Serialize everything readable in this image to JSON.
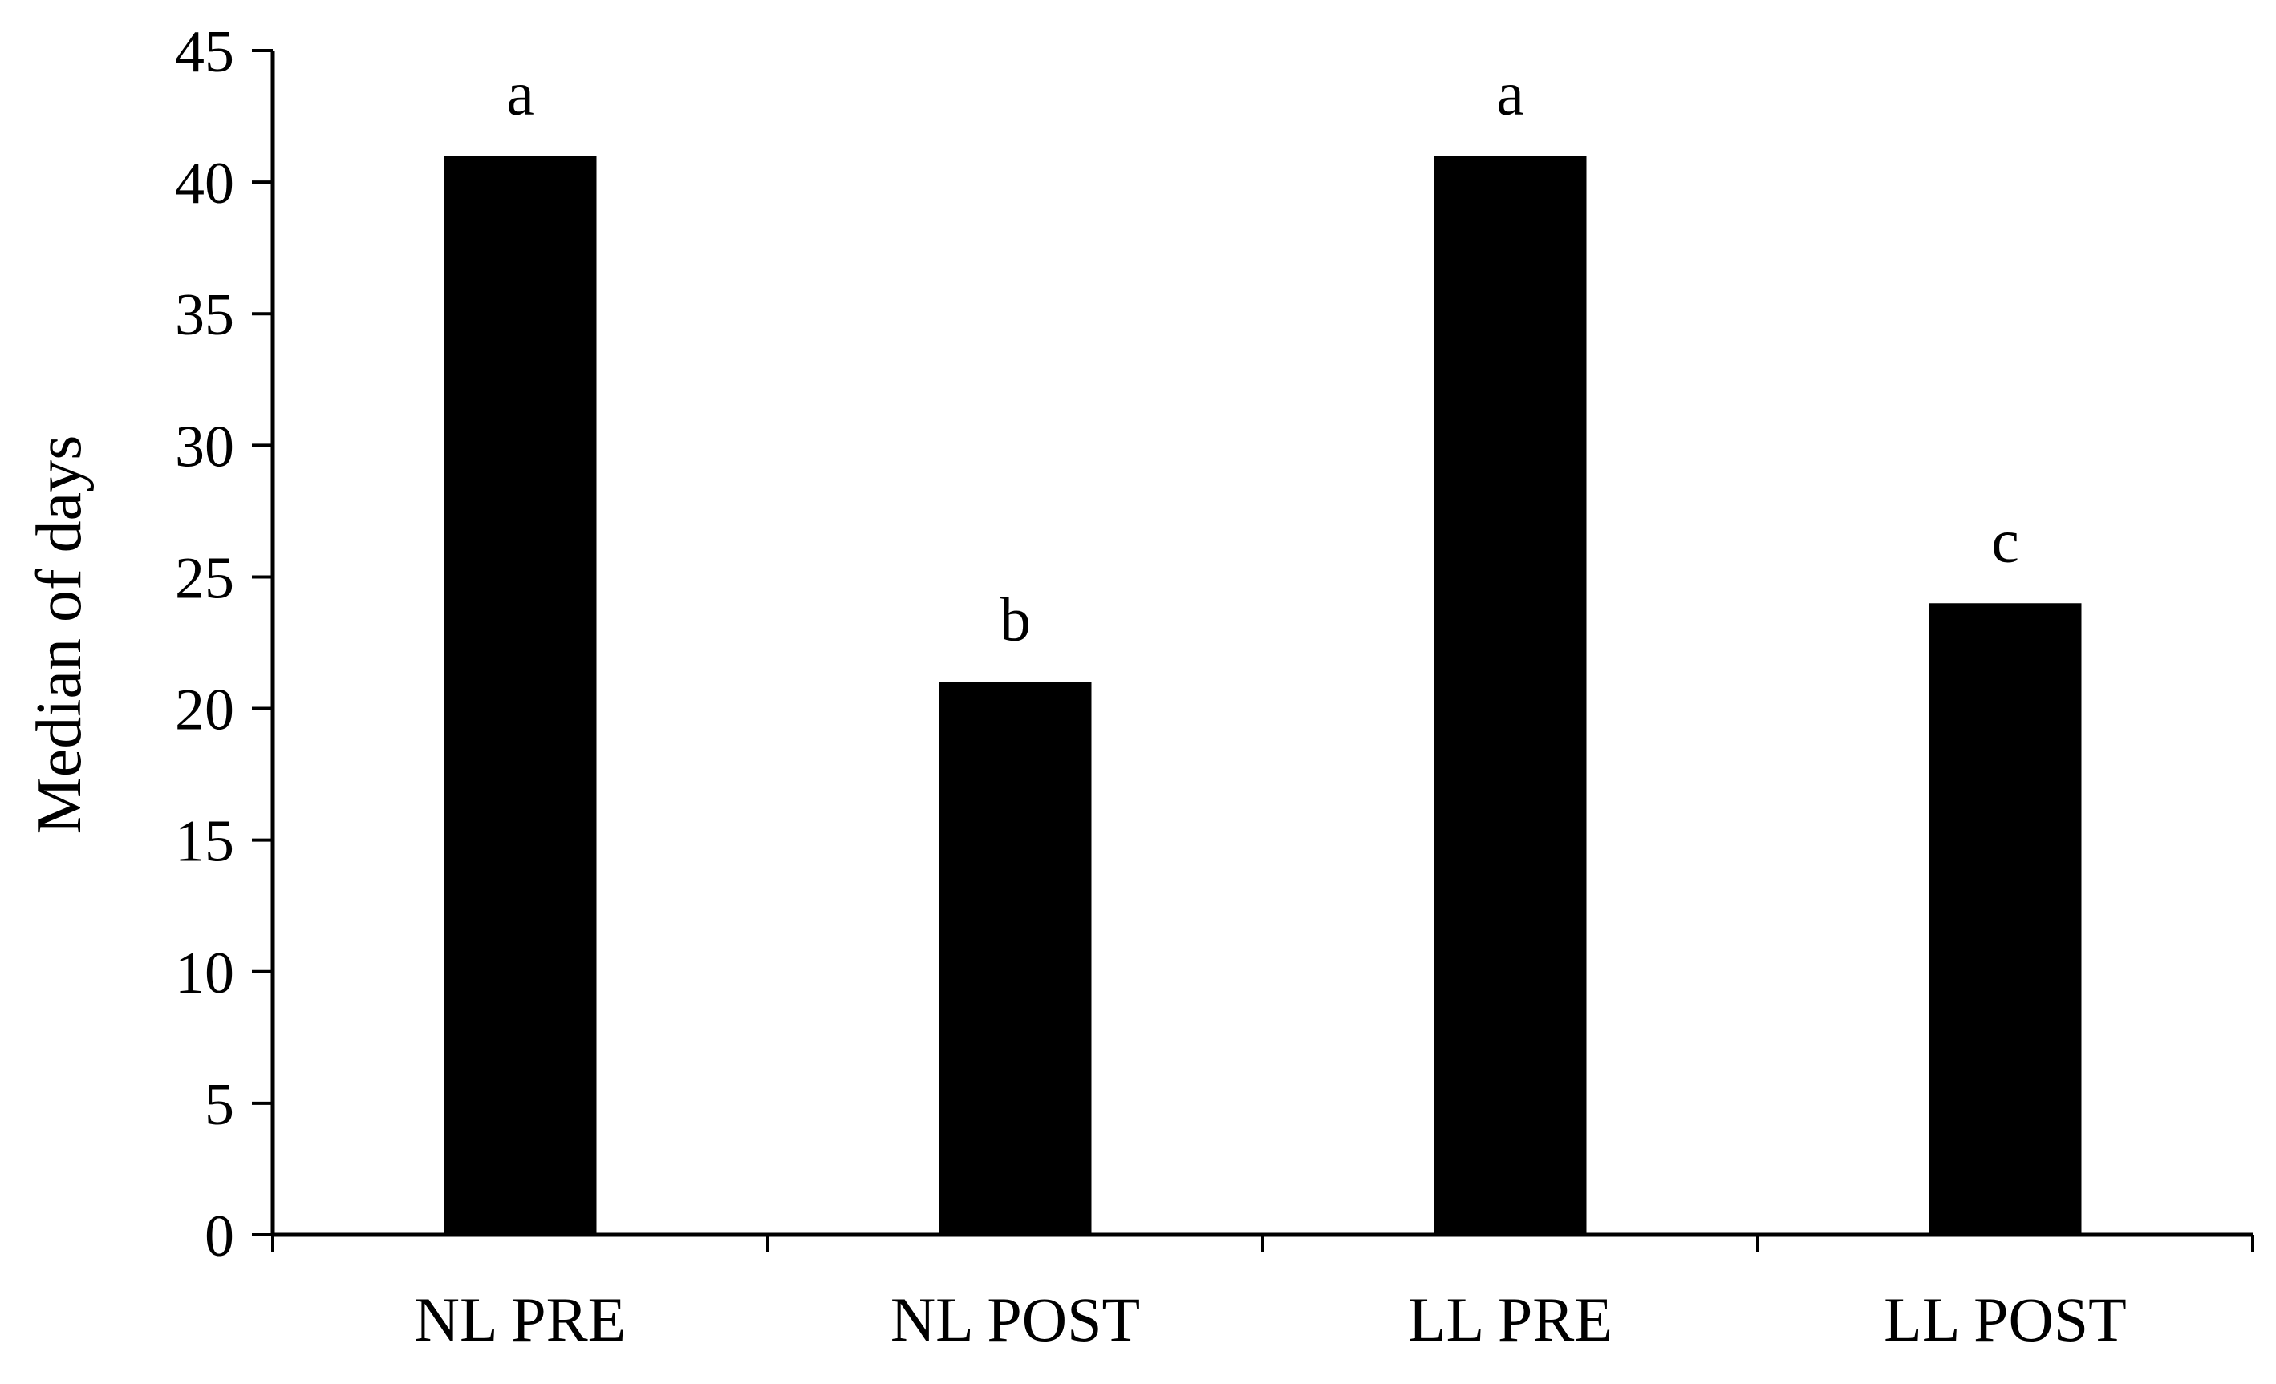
{
  "chart_data": {
    "type": "bar",
    "title": "",
    "xlabel": "",
    "ylabel": "Median of days",
    "categories": [
      "NL PRE",
      "NL POST",
      "LL PRE",
      "LL POST"
    ],
    "values": [
      41,
      21,
      41,
      24
    ],
    "significance_labels": [
      "a",
      "b",
      "a",
      "c"
    ],
    "ylim": [
      0,
      45
    ],
    "yticks": [
      0,
      5,
      10,
      15,
      20,
      25,
      30,
      35,
      40,
      45
    ],
    "grid": false,
    "legend": "none",
    "bar_color": "#000000"
  }
}
